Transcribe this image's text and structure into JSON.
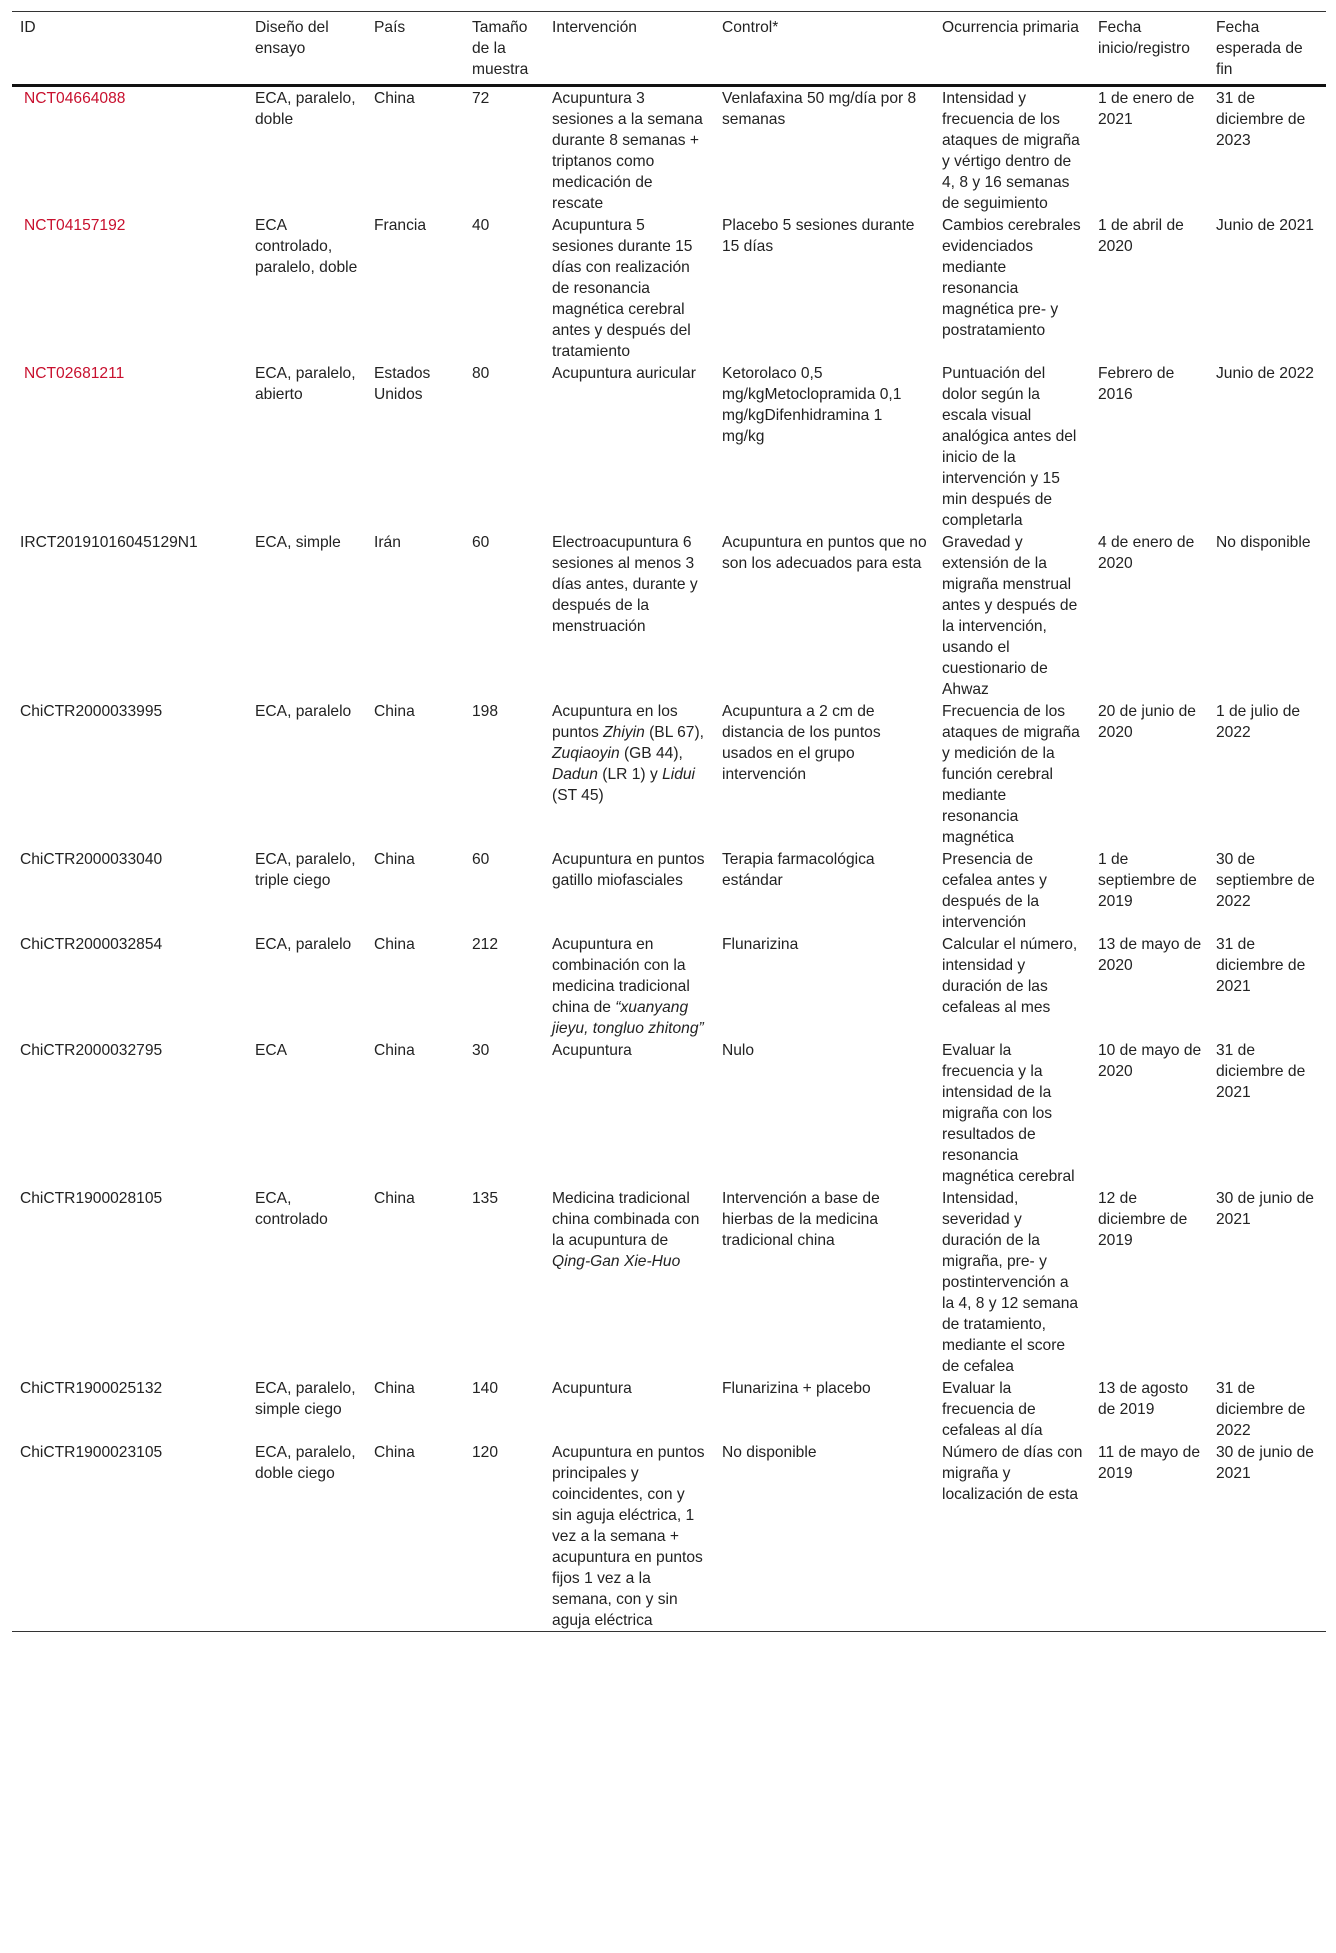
{
  "headers": [
    "ID",
    "Diseño del ensayo",
    "País",
    "Tamaño de la muestra",
    "Intervención",
    "Control*",
    "Ocurrencia primaria",
    "Fecha inicio/registro",
    "Fecha esperada de fin"
  ],
  "link_color": "#c8102e",
  "rows": [
    {
      "id": "NCT04664088",
      "link": true,
      "design": "ECA, paralelo, doble",
      "country": "China",
      "size": "72",
      "intervention": [
        {
          "t": "Acupuntura 3 sesiones a la semana durante 8 semanas + triptanos como medicación de rescate"
        }
      ],
      "control": "Venlafaxina 50 mg/día por 8 semanas",
      "outcome": "Intensidad y frecuencia de los ataques de migraña y vértigo dentro de 4, 8 y 16 semanas de seguimiento",
      "start": "1 de enero de 2021",
      "end": "31 de diciembre de 2023"
    },
    {
      "id": "NCT04157192",
      "link": true,
      "design": "ECA controlado, paralelo, doble",
      "country": "Francia",
      "size": "40",
      "intervention": [
        {
          "t": "Acupuntura 5 sesiones durante 15 días con realización de resonancia magnética cerebral antes y después del tratamiento"
        }
      ],
      "control": "Placebo 5 sesiones durante 15 días",
      "outcome": "Cambios cerebrales evidenciados mediante resonancia magnética pre- y postratamiento",
      "start": "1 de abril de 2020",
      "end": "Junio de 2021"
    },
    {
      "id": "NCT02681211",
      "link": true,
      "design": "ECA, paralelo, abierto",
      "country": "Estados Unidos",
      "size": "80",
      "intervention": [
        {
          "t": "Acupuntura auricular"
        }
      ],
      "control": "Ketorolaco 0,5 mg/kgMetoclopramida 0,1 mg/kgDifenhidramina 1 mg/kg",
      "outcome": "Puntuación del dolor según la escala visual analógica antes del inicio de la intervención y 15 min después de completarla",
      "start": "Febrero de 2016",
      "end": "Junio de 2022"
    },
    {
      "id": "IRCT20191016045129N1",
      "link": false,
      "design": "ECA, simple",
      "country": "Irán",
      "size": "60",
      "intervention": [
        {
          "t": "Electroacupuntura 6 sesiones al menos 3 días antes, durante y después de la menstruación"
        }
      ],
      "control": "Acupuntura en puntos que no son los adecuados para esta",
      "outcome": "Gravedad y extensión de la migraña menstrual antes y después de la intervención, usando el cuestionario de Ahwaz",
      "start": "4 de enero de 2020",
      "end": "No disponible"
    },
    {
      "id": "ChiCTR2000033995",
      "link": false,
      "design": "ECA, paralelo",
      "country": "China",
      "size": "198",
      "intervention": [
        {
          "t": "Acupuntura en los puntos "
        },
        {
          "t": "Zhiyin",
          "i": true
        },
        {
          "t": " (BL 67), "
        },
        {
          "t": "Zuqiaoyin",
          "i": true
        },
        {
          "t": " (GB 44), "
        },
        {
          "t": "Dadun",
          "i": true
        },
        {
          "t": " (LR 1) y "
        },
        {
          "t": "Lidui",
          "i": true
        },
        {
          "t": " (ST 45)"
        }
      ],
      "control": "Acupuntura a 2 cm de distancia de los puntos usados en el grupo intervención",
      "outcome": "Frecuencia de los ataques de migraña y medición de la función cerebral mediante resonancia magnética",
      "start": "20 de junio de 2020",
      "end": "1 de julio de 2022"
    },
    {
      "id": "ChiCTR2000033040",
      "link": false,
      "design": "ECA, paralelo, triple ciego",
      "country": "China",
      "size": "60",
      "intervention": [
        {
          "t": "Acupuntura en puntos gatillo miofasciales"
        }
      ],
      "control": "Terapia farmacológica estándar",
      "outcome": "Presencia de cefalea antes y después de la intervención",
      "start": "1 de septiembre de 2019",
      "end": "30 de septiembre de 2022"
    },
    {
      "id": "ChiCTR2000032854",
      "link": false,
      "design": "ECA, paralelo",
      "country": "China",
      "size": "212",
      "intervention": [
        {
          "t": "Acupuntura en combinación con la medicina tradicional china de "
        },
        {
          "t": "“xuanyang jieyu, tongluo zhitong”",
          "i": true
        }
      ],
      "control": "Flunarizina",
      "outcome": "Calcular el número, intensidad y duración de las cefaleas al mes",
      "start": "13 de mayo de 2020",
      "end": "31 de diciembre de 2021"
    },
    {
      "id": "ChiCTR2000032795",
      "link": false,
      "design": "ECA",
      "country": "China",
      "size": "30",
      "intervention": [
        {
          "t": "Acupuntura"
        }
      ],
      "control": "Nulo",
      "outcome": "Evaluar la frecuencia y la intensidad de la migraña con los resultados de resonancia magnética cerebral",
      "start": "10 de mayo de 2020",
      "end": "31 de diciembre de 2021"
    },
    {
      "id": "ChiCTR1900028105",
      "link": false,
      "design": "ECA, controlado",
      "country": "China",
      "size": "135",
      "intervention": [
        {
          "t": "Medicina tradicional china combinada con la acupuntura de "
        },
        {
          "t": "Qing-Gan Xie-Huo",
          "i": true
        }
      ],
      "control": "Intervención a base de hierbas de la medicina tradicional china",
      "outcome": "Intensidad, severidad y duración de la migraña, pre- y postintervención a la 4, 8 y 12 semana de tratamiento, mediante el score de cefalea",
      "start": "12 de diciembre de 2019",
      "end": "30 de junio de 2021"
    },
    {
      "id": "ChiCTR1900025132",
      "link": false,
      "design": "ECA, paralelo, simple ciego",
      "country": "China",
      "size": "140",
      "intervention": [
        {
          "t": "Acupuntura"
        }
      ],
      "control": "Flunarizina + placebo",
      "outcome": "Evaluar la frecuencia de cefaleas al día",
      "start": "13 de agosto de 2019",
      "end": "31 de diciembre de 2022"
    },
    {
      "id": "ChiCTR1900023105",
      "link": false,
      "design": "ECA, paralelo, doble ciego",
      "country": "China",
      "size": "120",
      "intervention": [
        {
          "t": "Acupuntura en puntos principales y coincidentes, con y sin aguja eléctrica, 1 vez a la semana + acupuntura en puntos fijos 1 vez a la semana, con y sin aguja eléctrica"
        }
      ],
      "control": "No disponible",
      "outcome": "Número de días con migraña y localización de esta",
      "start": "11 de mayo de 2019",
      "end": "30 de junio de 2021"
    }
  ]
}
